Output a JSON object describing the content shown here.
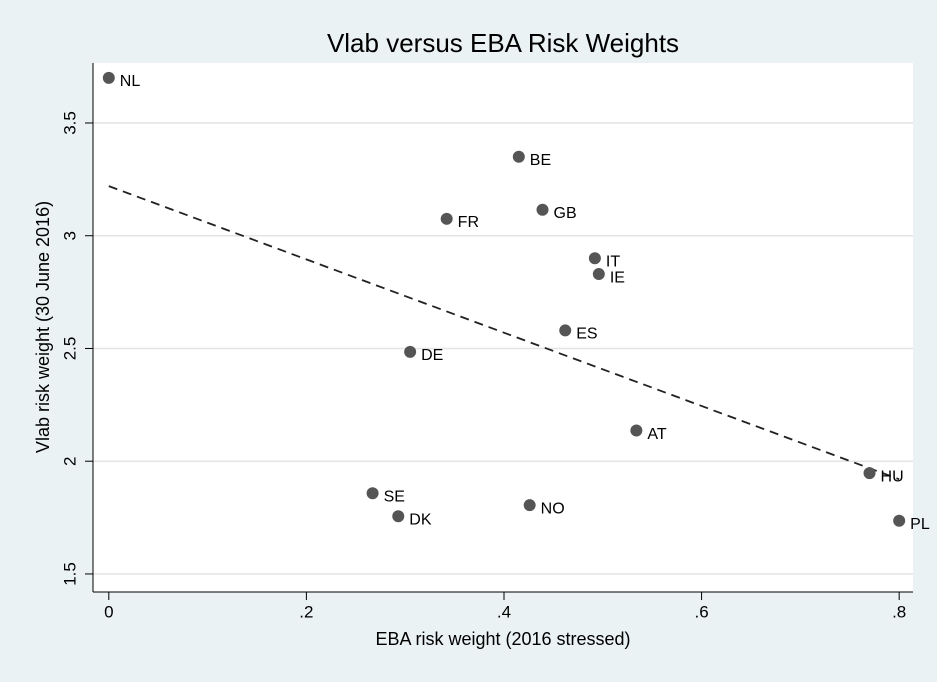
{
  "chart_data": {
    "type": "scatter",
    "title": "Vlab versus EBA Risk Weights",
    "x_label": "EBA risk weight (2016 stressed)",
    "y_label": "Vlab risk weight (30 June 2016)",
    "labels": [
      "NL",
      "BE",
      "FR",
      "GB",
      "IT",
      "IE",
      "ES",
      "DE",
      "AT",
      "HU",
      "SE",
      "NO",
      "DK",
      "PL"
    ],
    "x": [
      0,
      0.415,
      0.342,
      0.439,
      0.492,
      0.496,
      0.462,
      0.305,
      0.534,
      0.77,
      0.267,
      0.426,
      0.293,
      0.8
    ],
    "values": [
      3.7,
      3.35,
      3.075,
      3.115,
      2.9,
      2.83,
      2.58,
      2.485,
      2.136,
      1.947,
      1.858,
      1.805,
      1.756,
      1.736
    ],
    "color": "#555555",
    "fit_line": {
      "x": [
        0,
        0.8
      ],
      "values": [
        3.22,
        1.92
      ],
      "color": "#222222",
      "dashed": true
    },
    "xlim": [
      -0.016,
      0.814
    ],
    "ylim": [
      1.42,
      3.766
    ],
    "xticks": [
      0,
      {
        "value": 0.2,
        "label": ".2"
      },
      {
        "value": 0.4,
        "label": ".4"
      },
      {
        "value": 0.6,
        "label": ".6"
      },
      {
        "value": 0.8,
        "label": ".8"
      }
    ],
    "yticks": [
      1.5,
      2,
      2.5,
      3,
      3.5
    ],
    "grid": true
  }
}
